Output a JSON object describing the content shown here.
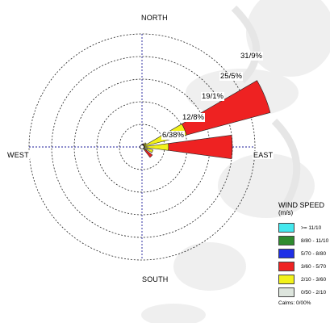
{
  "chart_data": {
    "type": "wind-rose",
    "directions": {
      "north": "NORTH",
      "south": "SOUTH",
      "east": "EAST",
      "west": "WEST"
    },
    "rings": [
      "6/38%",
      "12/8%",
      "19/1%",
      "25/5%",
      "31/9%"
    ],
    "ring_values": [
      6.38,
      12.8,
      19.1,
      25.5,
      31.9
    ],
    "legend": {
      "title": "WIND SPEED",
      "unit": "(m/s)",
      "classes": [
        {
          "label": ">= 11/10",
          "color": "#44e8ee"
        },
        {
          "label": "8/80 - 11/10",
          "color": "#2e8b2e"
        },
        {
          "label": "5/70 - 8/80",
          "color": "#1f2fe6"
        },
        {
          "label": "3/60 - 5/70",
          "color": "#ee2222"
        },
        {
          "label": "2/10 - 3/60",
          "color": "#f2f21a"
        },
        {
          "label": "0/50 - 2/10",
          "color": "#dde5dd"
        }
      ],
      "calms": "Calms: 0/00%"
    },
    "petals": [
      {
        "direction_deg": 67.5,
        "segments": [
          {
            "class": "2/10 - 3/60",
            "value": 13.0
          },
          {
            "class": "3/60 - 5/70",
            "value": 24.5
          }
        ]
      },
      {
        "direction_deg": 90,
        "segments": [
          {
            "class": "2/10 - 3/60",
            "value": 7.5
          },
          {
            "class": "3/60 - 5/70",
            "value": 18.0
          }
        ]
      },
      {
        "direction_deg": 112.5,
        "segments": [
          {
            "class": "0/50 - 2/10",
            "value": 1.5
          },
          {
            "class": "2/10 - 3/60",
            "value": 1.7
          }
        ]
      },
      {
        "direction_deg": 135,
        "segments": [
          {
            "class": "2/10 - 3/60",
            "value": 1.2
          },
          {
            "class": "3/60 - 5/70",
            "value": 2.5
          }
        ]
      },
      {
        "direction_deg": 45,
        "segments": [
          {
            "class": "2/10 - 3/60",
            "value": 1.5
          }
        ]
      },
      {
        "direction_deg": 22.5,
        "segments": [
          {
            "class": "3/60 - 5/70",
            "value": 1.0
          }
        ]
      },
      {
        "direction_deg": 247.5,
        "segments": [
          {
            "class": "3/60 - 5/70",
            "value": 0.6
          }
        ]
      },
      {
        "direction_deg": 270,
        "segments": [
          {
            "class": "3/60 - 5/70",
            "value": 0.4
          }
        ]
      },
      {
        "direction_deg": 292.5,
        "segments": [
          {
            "class": "3/60 - 5/70",
            "value": 0.4
          }
        ]
      }
    ]
  }
}
